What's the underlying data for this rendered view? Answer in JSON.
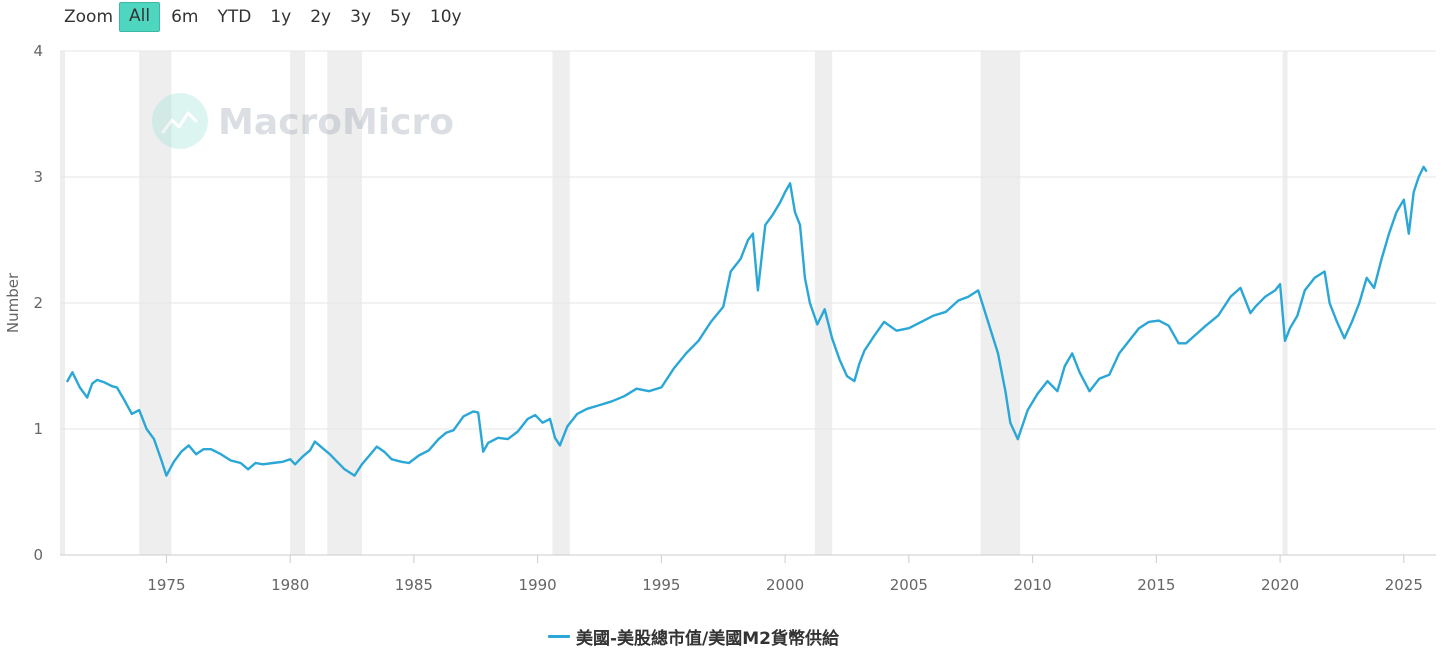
{
  "toolbar": {
    "zoom_label": "Zoom",
    "buttons": [
      "All",
      "6m",
      "YTD",
      "1y",
      "2y",
      "3y",
      "5y",
      "10y"
    ],
    "active": "All"
  },
  "watermark": "MacroMicro",
  "colors": {
    "series": "#2aa7d6",
    "recession_band": "#eeeeee",
    "grid": "#e6e6e6",
    "active_button": "#4fd6c0"
  },
  "chart_data": {
    "type": "line",
    "title": "",
    "xlabel": "",
    "ylabel": "Number",
    "xlim": [
      1970.7,
      2026.3
    ],
    "ylim": [
      0,
      4
    ],
    "yticks": [
      "0",
      "1",
      "2",
      "3",
      "4"
    ],
    "xticks": [
      "1975",
      "1980",
      "1985",
      "1990",
      "1995",
      "2000",
      "2005",
      "2010",
      "2015",
      "2020",
      "2025"
    ],
    "grid": true,
    "legend_position": "bottom-center",
    "recessions": [
      [
        1969.9,
        1970.9
      ],
      [
        1973.9,
        1975.2
      ],
      [
        1980.0,
        1980.6
      ],
      [
        1981.5,
        1982.9
      ],
      [
        1990.6,
        1991.3
      ],
      [
        2001.2,
        2001.9
      ],
      [
        2007.9,
        2009.5
      ],
      [
        2020.1,
        2020.3
      ]
    ],
    "series": [
      {
        "name": "美國-美股總市值/美國M2貨幣供給",
        "x": [
          1971.0,
          1971.2,
          1971.5,
          1971.8,
          1972.0,
          1972.2,
          1972.5,
          1972.8,
          1973.0,
          1973.3,
          1973.6,
          1973.9,
          1974.2,
          1974.5,
          1974.8,
          1975.0,
          1975.3,
          1975.6,
          1975.9,
          1976.2,
          1976.5,
          1976.8,
          1977.2,
          1977.6,
          1978.0,
          1978.3,
          1978.6,
          1978.9,
          1979.3,
          1979.7,
          1980.0,
          1980.2,
          1980.5,
          1980.8,
          1981.0,
          1981.3,
          1981.6,
          1981.9,
          1982.2,
          1982.6,
          1982.9,
          1983.2,
          1983.5,
          1983.8,
          1984.1,
          1984.5,
          1984.8,
          1985.2,
          1985.6,
          1986.0,
          1986.3,
          1986.6,
          1987.0,
          1987.4,
          1987.6,
          1987.8,
          1988.0,
          1988.4,
          1988.8,
          1989.2,
          1989.6,
          1989.9,
          1990.2,
          1990.5,
          1990.7,
          1990.9,
          1991.2,
          1991.6,
          1992.0,
          1992.5,
          1993.0,
          1993.5,
          1994.0,
          1994.5,
          1995.0,
          1995.5,
          1996.0,
          1996.5,
          1997.0,
          1997.5,
          1997.8,
          1998.2,
          1998.5,
          1998.7,
          1998.9,
          1999.2,
          1999.5,
          1999.8,
          2000.0,
          2000.2,
          2000.4,
          2000.6,
          2000.8,
          2001.0,
          2001.3,
          2001.6,
          2001.9,
          2002.2,
          2002.5,
          2002.8,
          2003.0,
          2003.2,
          2003.6,
          2004.0,
          2004.5,
          2005.0,
          2005.5,
          2006.0,
          2006.5,
          2007.0,
          2007.4,
          2007.8,
          2008.2,
          2008.6,
          2008.9,
          2009.1,
          2009.4,
          2009.8,
          2010.2,
          2010.6,
          2011.0,
          2011.3,
          2011.6,
          2011.9,
          2012.3,
          2012.7,
          2013.1,
          2013.5,
          2013.9,
          2014.3,
          2014.7,
          2015.1,
          2015.5,
          2015.9,
          2016.2,
          2016.6,
          2017.0,
          2017.5,
          2018.0,
          2018.4,
          2018.8,
          2019.0,
          2019.4,
          2019.8,
          2020.0,
          2020.2,
          2020.4,
          2020.7,
          2021.0,
          2021.4,
          2021.8,
          2022.0,
          2022.3,
          2022.6,
          2022.9,
          2023.2,
          2023.5,
          2023.8,
          2024.1,
          2024.4,
          2024.7,
          2025.0,
          2025.2,
          2025.4,
          2025.6,
          2025.8,
          2025.9
        ],
        "y": [
          1.38,
          1.45,
          1.33,
          1.25,
          1.36,
          1.39,
          1.37,
          1.34,
          1.33,
          1.23,
          1.12,
          1.15,
          1.0,
          0.92,
          0.75,
          0.63,
          0.74,
          0.82,
          0.87,
          0.8,
          0.84,
          0.84,
          0.8,
          0.75,
          0.73,
          0.68,
          0.73,
          0.72,
          0.73,
          0.74,
          0.76,
          0.72,
          0.78,
          0.83,
          0.9,
          0.85,
          0.8,
          0.74,
          0.68,
          0.63,
          0.72,
          0.79,
          0.86,
          0.82,
          0.76,
          0.74,
          0.73,
          0.79,
          0.83,
          0.92,
          0.97,
          0.99,
          1.1,
          1.14,
          1.13,
          0.82,
          0.89,
          0.93,
          0.92,
          0.98,
          1.08,
          1.11,
          1.05,
          1.08,
          0.93,
          0.87,
          1.02,
          1.12,
          1.16,
          1.19,
          1.22,
          1.26,
          1.32,
          1.3,
          1.33,
          1.48,
          1.6,
          1.7,
          1.85,
          1.97,
          2.25,
          2.35,
          2.5,
          2.55,
          2.1,
          2.62,
          2.7,
          2.8,
          2.88,
          2.95,
          2.72,
          2.62,
          2.2,
          2.0,
          1.83,
          1.95,
          1.72,
          1.55,
          1.42,
          1.38,
          1.52,
          1.62,
          1.74,
          1.85,
          1.78,
          1.8,
          1.85,
          1.9,
          1.93,
          2.02,
          2.05,
          2.1,
          1.85,
          1.6,
          1.3,
          1.05,
          0.92,
          1.15,
          1.28,
          1.38,
          1.3,
          1.5,
          1.6,
          1.45,
          1.3,
          1.4,
          1.43,
          1.6,
          1.7,
          1.8,
          1.85,
          1.86,
          1.82,
          1.68,
          1.68,
          1.75,
          1.82,
          1.9,
          2.05,
          2.12,
          1.92,
          1.97,
          2.05,
          2.1,
          2.15,
          1.7,
          1.8,
          1.9,
          2.1,
          2.2,
          2.25,
          2.0,
          1.85,
          1.72,
          1.85,
          2.0,
          2.2,
          2.12,
          2.35,
          2.55,
          2.72,
          2.82,
          2.55,
          2.88,
          3.0,
          3.08,
          3.05
        ]
      }
    ]
  }
}
